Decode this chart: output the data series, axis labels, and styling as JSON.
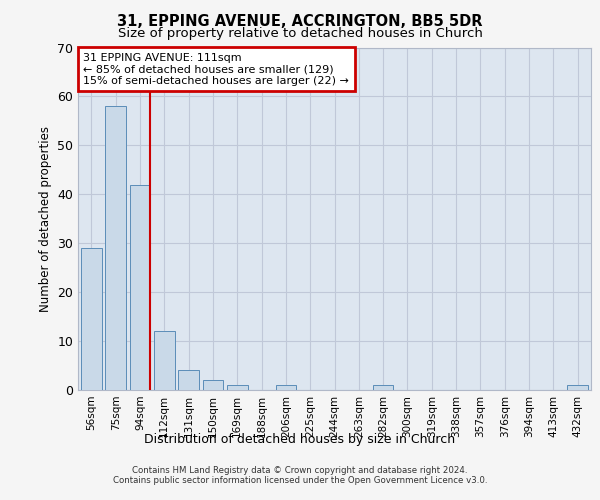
{
  "title1": "31, EPPING AVENUE, ACCRINGTON, BB5 5DR",
  "title2": "Size of property relative to detached houses in Church",
  "xlabel": "Distribution of detached houses by size in Church",
  "ylabel": "Number of detached properties",
  "categories": [
    "56sqm",
    "75sqm",
    "94sqm",
    "112sqm",
    "131sqm",
    "150sqm",
    "169sqm",
    "188sqm",
    "206sqm",
    "225sqm",
    "244sqm",
    "263sqm",
    "282sqm",
    "300sqm",
    "319sqm",
    "338sqm",
    "357sqm",
    "376sqm",
    "394sqm",
    "413sqm",
    "432sqm"
  ],
  "values": [
    29,
    58,
    42,
    12,
    4,
    2,
    1,
    0,
    1,
    0,
    0,
    0,
    1,
    0,
    0,
    0,
    0,
    0,
    0,
    0,
    1
  ],
  "bar_color": "#c9d9e8",
  "bar_edge_color": "#5b8db8",
  "red_line_index": 3,
  "annotation_lines": [
    "31 EPPING AVENUE: 111sqm",
    "← 85% of detached houses are smaller (129)",
    "15% of semi-detached houses are larger (22) →"
  ],
  "annotation_box_color": "#ffffff",
  "annotation_border_color": "#cc0000",
  "ylim": [
    0,
    70
  ],
  "yticks": [
    0,
    10,
    20,
    30,
    40,
    50,
    60,
    70
  ],
  "grid_color": "#c0c8d8",
  "background_color": "#dde6f0",
  "fig_background_color": "#f5f5f5",
  "footer_line1": "Contains HM Land Registry data © Crown copyright and database right 2024.",
  "footer_line2": "Contains public sector information licensed under the Open Government Licence v3.0."
}
